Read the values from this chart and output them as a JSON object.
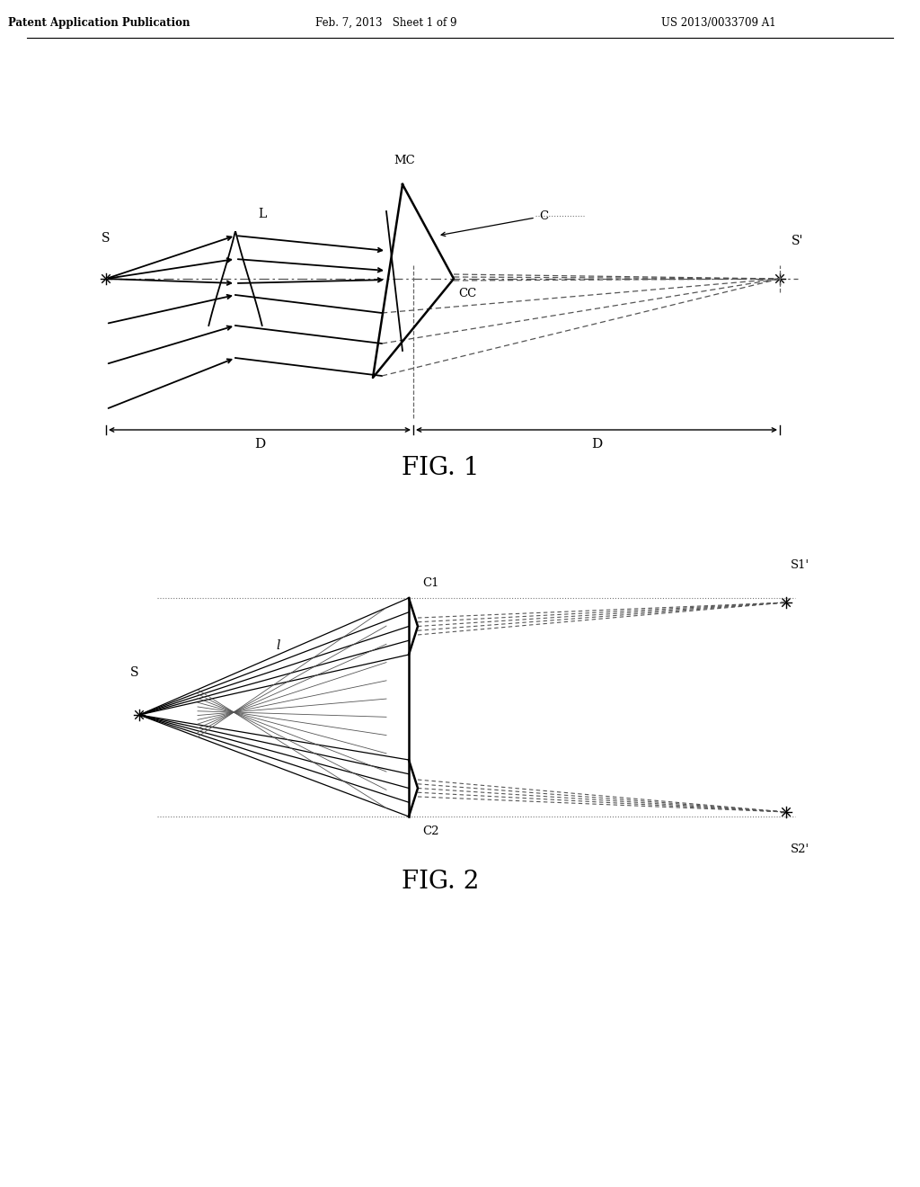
{
  "header_left": "Patent Application Publication",
  "header_mid": "Feb. 7, 2013   Sheet 1 of 9",
  "header_right": "US 2013/0033709 A1",
  "fig1_label": "FIG. 1",
  "fig2_label": "FIG. 2",
  "background": "#ffffff",
  "line_color": "#000000",
  "dashed_color": "#555555"
}
